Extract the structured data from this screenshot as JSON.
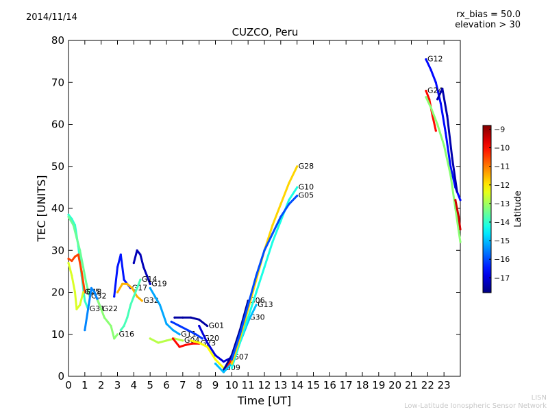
{
  "header": {
    "date": "2014/11/14",
    "params": [
      "rx_bias = 50.0",
      "elevation > 30"
    ]
  },
  "footer": {
    "lines": [
      "LISN",
      "Low-Latitude Ionospheric Sensor Network"
    ]
  },
  "chart_data": {
    "type": "scatter",
    "title": "CUZCO, Peru",
    "xlabel": "Time [UT]",
    "ylabel": "TEC [UNITS]",
    "xlim": [
      0,
      24
    ],
    "ylim": [
      0,
      80
    ],
    "xticks": [
      0,
      1,
      2,
      3,
      4,
      5,
      6,
      7,
      8,
      9,
      10,
      11,
      12,
      13,
      14,
      15,
      16,
      17,
      18,
      19,
      20,
      21,
      22,
      23
    ],
    "yticks": [
      0,
      10,
      20,
      30,
      40,
      50,
      60,
      70,
      80
    ],
    "grid": false,
    "colorbar": {
      "label": "Latitude",
      "range": [
        -17.8,
        -8.8
      ],
      "ticks": [
        -9,
        -10,
        -11,
        -12,
        -13,
        -14,
        -15,
        -16,
        -17
      ],
      "colormap": [
        "#00007f",
        "#0000ff",
        "#007fff",
        "#00ffff",
        "#7fff7f",
        "#ffff00",
        "#ff7f00",
        "#ff0000",
        "#7f0000"
      ]
    },
    "series": [
      {
        "name": "G31",
        "lat": -14.0,
        "points": [
          [
            0,
            38.5
          ],
          [
            0.2,
            37.5
          ],
          [
            0.4,
            36
          ],
          [
            0.6,
            31
          ],
          [
            0.8,
            24
          ],
          [
            1.0,
            18
          ],
          [
            1.2,
            16
          ]
        ]
      },
      {
        "name": "G32",
        "lat": -13.5,
        "points": [
          [
            0,
            38
          ],
          [
            0.3,
            36
          ],
          [
            0.5,
            33
          ],
          [
            0.7,
            30
          ],
          [
            0.9,
            26
          ],
          [
            1.1,
            22
          ],
          [
            1.3,
            19
          ]
        ]
      },
      {
        "name": "G18",
        "lat": -10.5,
        "points": [
          [
            0,
            28
          ],
          [
            0.2,
            27.5
          ],
          [
            0.4,
            28.5
          ],
          [
            0.6,
            29
          ],
          [
            0.8,
            25
          ],
          [
            1.0,
            20
          ]
        ]
      },
      {
        "name": "G25",
        "lat": -12.5,
        "points": [
          [
            0,
            27
          ],
          [
            0.2,
            24
          ],
          [
            0.4,
            20
          ],
          [
            0.5,
            16
          ],
          [
            0.7,
            17
          ],
          [
            0.9,
            20
          ]
        ]
      },
      {
        "name": "G22",
        "lat": -15.5,
        "points": [
          [
            1.0,
            11
          ],
          [
            1.2,
            16
          ],
          [
            1.4,
            21
          ],
          [
            1.6,
            20
          ],
          [
            1.8,
            18
          ],
          [
            2.0,
            16
          ]
        ]
      },
      {
        "name": "G16",
        "lat": -13.2,
        "points": [
          [
            1.8,
            18
          ],
          [
            2.0,
            16
          ],
          [
            2.2,
            14
          ],
          [
            2.4,
            13
          ],
          [
            2.6,
            12
          ],
          [
            2.8,
            9
          ],
          [
            3.0,
            10
          ]
        ]
      },
      {
        "name": "G17",
        "lat": -16.5,
        "points": [
          [
            2.8,
            19
          ],
          [
            3.0,
            26
          ],
          [
            3.2,
            29
          ],
          [
            3.4,
            23
          ],
          [
            3.6,
            22
          ],
          [
            3.8,
            21
          ]
        ]
      },
      {
        "name": "G32",
        "lat": -11.5,
        "points": [
          [
            3.0,
            20
          ],
          [
            3.3,
            22
          ],
          [
            3.6,
            22
          ],
          [
            3.9,
            21
          ],
          [
            4.2,
            19
          ],
          [
            4.5,
            18
          ]
        ]
      },
      {
        "name": "G19",
        "lat": -17.3,
        "points": [
          [
            4.0,
            27
          ],
          [
            4.2,
            30
          ],
          [
            4.4,
            29
          ],
          [
            4.6,
            26
          ],
          [
            4.8,
            24
          ],
          [
            5.0,
            22
          ]
        ]
      },
      {
        "name": "G14",
        "lat": -13.8,
        "points": [
          [
            3.2,
            11
          ],
          [
            3.4,
            12
          ],
          [
            3.6,
            14
          ],
          [
            3.8,
            17
          ],
          [
            4.0,
            19
          ],
          [
            4.2,
            21
          ],
          [
            4.4,
            23
          ]
        ]
      },
      {
        "name": "G11",
        "lat": -15.2,
        "points": [
          [
            5.0,
            21
          ],
          [
            5.3,
            19
          ],
          [
            5.6,
            17
          ],
          [
            6.0,
            12.5
          ],
          [
            6.4,
            11
          ],
          [
            6.8,
            10
          ]
        ]
      },
      {
        "name": "G01",
        "lat": -17.5,
        "points": [
          [
            6.5,
            14
          ],
          [
            7.0,
            14
          ],
          [
            7.5,
            14
          ],
          [
            8.0,
            13.5
          ],
          [
            8.5,
            12
          ]
        ]
      },
      {
        "name": "G04",
        "lat": -12.8,
        "points": [
          [
            5.0,
            9
          ],
          [
            5.5,
            8
          ],
          [
            6.0,
            8.5
          ],
          [
            6.5,
            9
          ],
          [
            7.0,
            8.5
          ]
        ]
      },
      {
        "name": "G20",
        "lat": -16.2,
        "points": [
          [
            6.3,
            13
          ],
          [
            6.8,
            12
          ],
          [
            7.3,
            11
          ],
          [
            7.8,
            10
          ],
          [
            8.2,
            9
          ]
        ]
      },
      {
        "name": "G23",
        "lat": -10.0,
        "points": [
          [
            6.4,
            9
          ],
          [
            6.8,
            7
          ],
          [
            7.2,
            7.5
          ],
          [
            7.6,
            7.8
          ],
          [
            8.0,
            7.8
          ]
        ]
      },
      {
        "name": "G09",
        "lat": -12.2,
        "points": [
          [
            7.5,
            8.5
          ],
          [
            8.0,
            8
          ],
          [
            8.5,
            7
          ],
          [
            9.0,
            4
          ],
          [
            9.5,
            2
          ]
        ]
      },
      {
        "name": "G07",
        "lat": -17.0,
        "points": [
          [
            8.0,
            12
          ],
          [
            8.5,
            8
          ],
          [
            9.0,
            5
          ],
          [
            9.5,
            3.5
          ],
          [
            10.0,
            4.5
          ]
        ]
      },
      {
        "name": "G30",
        "lat": -10.2,
        "points": [
          [
            9.5,
            1
          ],
          [
            10.0,
            4
          ],
          [
            10.5,
            9
          ],
          [
            11.0,
            14
          ]
        ]
      },
      {
        "name": "G06",
        "lat": -17.6,
        "points": [
          [
            9.5,
            1.5
          ],
          [
            10.0,
            5
          ],
          [
            10.5,
            11
          ],
          [
            11.0,
            18
          ]
        ]
      },
      {
        "name": "G13",
        "lat": -15.0,
        "points": [
          [
            9.0,
            3
          ],
          [
            9.5,
            1
          ],
          [
            10.0,
            3
          ],
          [
            10.5,
            8
          ],
          [
            11.0,
            13
          ],
          [
            11.5,
            17
          ]
        ]
      },
      {
        "name": "G10",
        "lat": -14.2,
        "points": [
          [
            10.0,
            2
          ],
          [
            10.5,
            8
          ],
          [
            11.0,
            14
          ],
          [
            11.5,
            20
          ],
          [
            12.0,
            26
          ],
          [
            12.5,
            32
          ],
          [
            13.0,
            37
          ],
          [
            13.5,
            42
          ],
          [
            14.0,
            45
          ]
        ]
      },
      {
        "name": "G28",
        "lat": -11.8,
        "points": [
          [
            10.0,
            3
          ],
          [
            10.5,
            9
          ],
          [
            11.0,
            16
          ],
          [
            11.5,
            23
          ],
          [
            12.0,
            30
          ],
          [
            12.5,
            36
          ],
          [
            13.0,
            41
          ],
          [
            13.5,
            46
          ],
          [
            14.0,
            50
          ]
        ]
      },
      {
        "name": "G05",
        "lat": -16.0,
        "points": [
          [
            10.0,
            4
          ],
          [
            10.5,
            10
          ],
          [
            11.0,
            17
          ],
          [
            11.5,
            24
          ],
          [
            12.0,
            30
          ],
          [
            12.5,
            34
          ],
          [
            13.0,
            38
          ],
          [
            13.5,
            41
          ],
          [
            14.0,
            43
          ]
        ]
      },
      {
        "name": "G12",
        "lat": -16.6,
        "points": [
          [
            21.9,
            75.5
          ],
          [
            22.2,
            73
          ],
          [
            22.5,
            70
          ],
          [
            22.8,
            65
          ],
          [
            23.1,
            58
          ],
          [
            23.4,
            50
          ],
          [
            23.7,
            45
          ],
          [
            24.0,
            42
          ]
        ]
      },
      {
        "name": "G24",
        "lat": -10.0,
        "points": [
          [
            21.9,
            68
          ],
          [
            22.1,
            66
          ],
          [
            22.3,
            62
          ],
          [
            22.5,
            58.5
          ]
        ]
      },
      {
        "name": "",
        "lat": -13.2,
        "points": [
          [
            21.9,
            66.5
          ],
          [
            22.2,
            64
          ],
          [
            22.6,
            60
          ],
          [
            23.0,
            55
          ],
          [
            23.4,
            48
          ],
          [
            23.7,
            40
          ],
          [
            24.0,
            32
          ]
        ]
      },
      {
        "name": "",
        "lat": -17.4,
        "points": [
          [
            22.6,
            66
          ],
          [
            22.9,
            68.5
          ],
          [
            23.2,
            62
          ],
          [
            23.5,
            52
          ],
          [
            23.8,
            44
          ]
        ]
      },
      {
        "name": "",
        "lat": -9.5,
        "points": [
          [
            23.7,
            42
          ],
          [
            23.9,
            38
          ],
          [
            24.0,
            35
          ]
        ]
      }
    ]
  }
}
